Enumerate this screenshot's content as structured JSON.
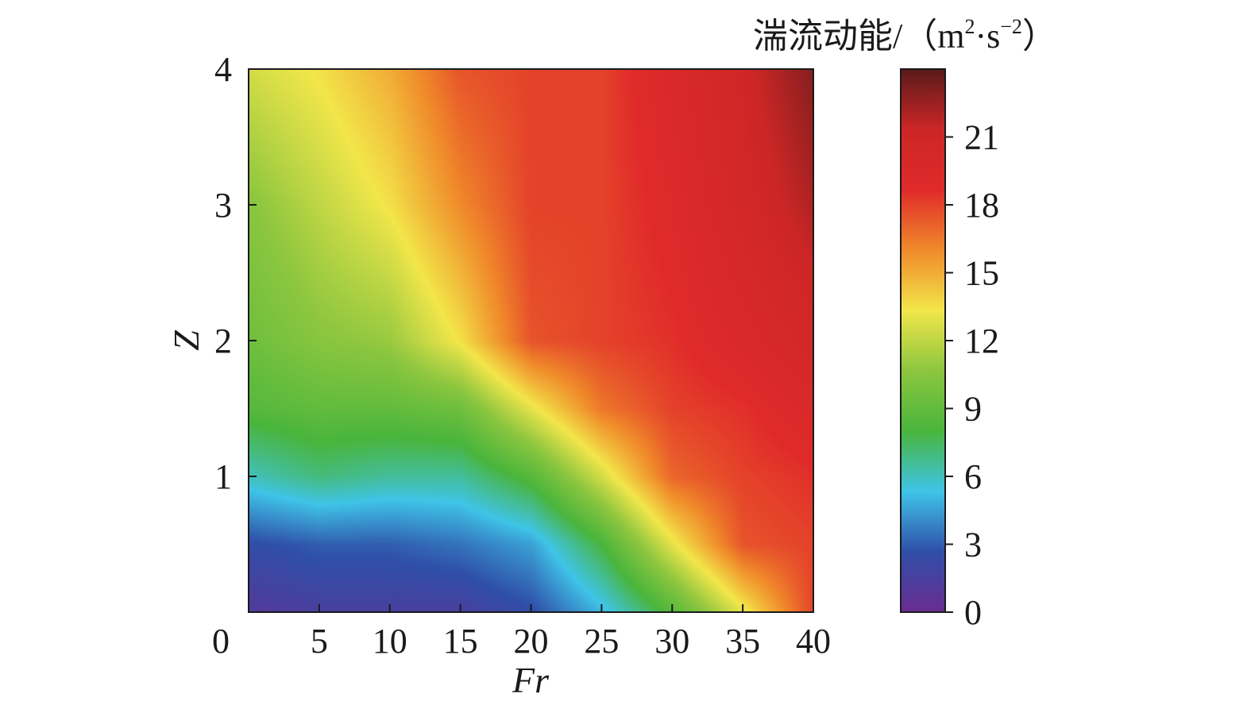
{
  "chart_data": {
    "type": "heatmap",
    "xlabel": "Fr",
    "ylabel": "Z",
    "xlim": [
      0,
      40
    ],
    "ylim": [
      0,
      4
    ],
    "x_ticks": [
      "0",
      "5",
      "10",
      "15",
      "20",
      "25",
      "30",
      "35",
      "40"
    ],
    "x_tick_values": [
      0,
      5,
      10,
      15,
      20,
      25,
      30,
      35,
      40
    ],
    "y_ticks": [
      "1",
      "2",
      "3",
      "4"
    ],
    "y_tick_values": [
      1,
      2,
      3,
      4
    ],
    "colorbar": {
      "title_main": "湍流动能/（m",
      "title_sup1": "2",
      "title_mid": "·s",
      "title_sup2": "−2",
      "title_end": "）",
      "ticks": [
        "0",
        "3",
        "6",
        "9",
        "12",
        "15",
        "18",
        "21"
      ],
      "tick_values": [
        0,
        3,
        6,
        9,
        12,
        15,
        18,
        21
      ],
      "range": [
        0,
        24
      ],
      "colors": [
        "#6a2c91",
        "#2f4fa8",
        "#3fc4e8",
        "#49b53c",
        "#8cc63f",
        "#f2e64a",
        "#f08a2a",
        "#e02a2a",
        "#cc2626",
        "#5a1a1a"
      ]
    },
    "z_grid": {
      "x": [
        0,
        5,
        10,
        15,
        20,
        25,
        30,
        35,
        40
      ],
      "y": [
        0,
        0.5,
        1,
        1.5,
        2,
        3,
        4
      ],
      "values": [
        [
          1.0,
          1.5,
          1.5,
          1.5,
          2.5,
          5.0,
          8.5,
          13.0,
          18.0
        ],
        [
          2.5,
          3.0,
          3.0,
          3.5,
          4.5,
          8.0,
          13.0,
          17.5,
          18.0
        ],
        [
          6.0,
          7.0,
          6.5,
          6.5,
          8.5,
          12.5,
          17.0,
          18.0,
          18.5
        ],
        [
          8.5,
          9.0,
          9.0,
          9.5,
          13.0,
          16.5,
          18.0,
          18.5,
          19.5
        ],
        [
          9.5,
          10.5,
          11.0,
          13.5,
          17.5,
          18.0,
          18.5,
          19.5,
          20.5
        ],
        [
          10.5,
          12.0,
          13.5,
          16.0,
          18.0,
          18.0,
          19.0,
          20.5,
          22.0
        ],
        [
          12.5,
          13.5,
          15.0,
          17.5,
          18.0,
          18.0,
          19.5,
          21.0,
          23.0
        ]
      ]
    }
  }
}
